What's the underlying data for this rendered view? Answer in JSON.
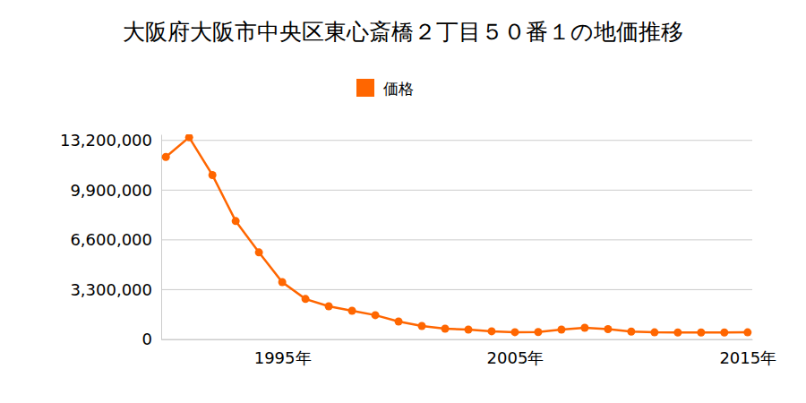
{
  "chart_data": {
    "type": "line",
    "title": "大阪府大阪市中央区東心斎橋２丁目５０番１の地価推移",
    "x": [
      1990,
      1991,
      1992,
      1993,
      1994,
      1995,
      1996,
      1997,
      1998,
      1999,
      2000,
      2001,
      2002,
      2003,
      2004,
      2005,
      2006,
      2007,
      2008,
      2009,
      2010,
      2011,
      2012,
      2013,
      2014,
      2015
    ],
    "series": [
      {
        "name": "価格",
        "color": "#ff6600",
        "marker": "circle",
        "values": [
          12100000,
          13400000,
          10900000,
          7850000,
          5770000,
          3800000,
          2680000,
          2200000,
          1900000,
          1610000,
          1190000,
          890000,
          710000,
          650000,
          540000,
          480000,
          490000,
          650000,
          770000,
          680000,
          520000,
          470000,
          460000,
          460000,
          460000,
          470000
        ]
      }
    ],
    "xlim": [
      1989.8,
      2015.2
    ],
    "xticks": [
      {
        "value": 1995,
        "label": "1995年"
      },
      {
        "value": 2005,
        "label": "2005年"
      },
      {
        "value": 2015,
        "label": "2015年"
      }
    ],
    "ylim": [
      0,
      13600000
    ],
    "yticks": [
      0,
      {
        "value": 3300000,
        "label": "3,300,000"
      },
      {
        "value": 6600000,
        "label": "6,600,000"
      },
      {
        "value": 9900000,
        "label": "9,900,000"
      },
      {
        "value": 13200000,
        "label": "13,200,000"
      }
    ],
    "grid": true,
    "legend": "top"
  }
}
